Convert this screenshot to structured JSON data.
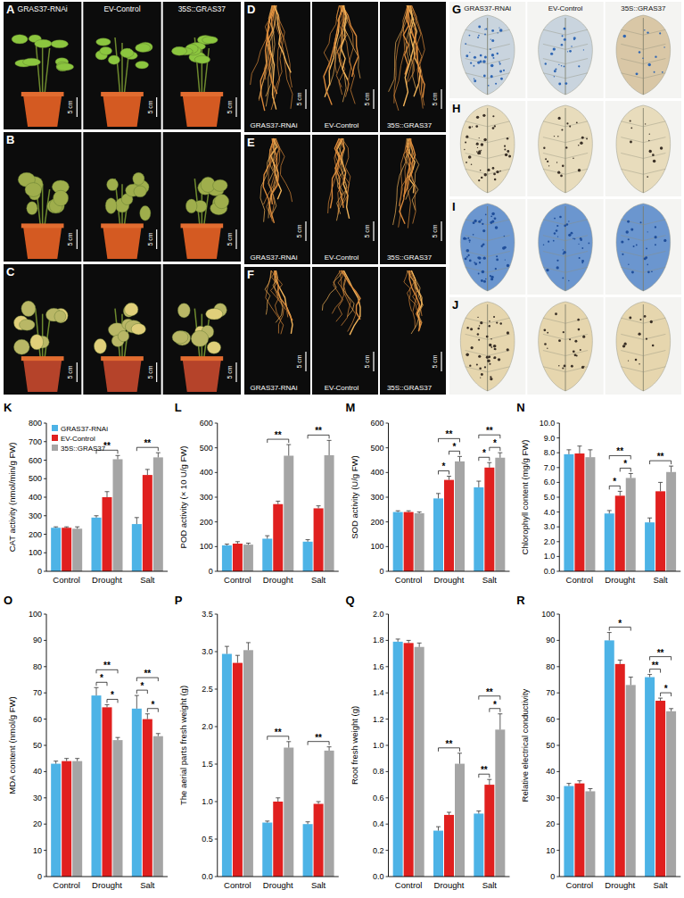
{
  "figure": {
    "panels": [
      {
        "letter": "A",
        "captions": [
          "GRAS37-RNAi",
          "EV-Control",
          "35S::GRAS37"
        ],
        "scale_bar": "5 cm"
      },
      {
        "letter": "B",
        "scale_bar": "5 cm"
      },
      {
        "letter": "C",
        "scale_bar": "5 cm"
      },
      {
        "letter": "D",
        "captions": [
          "GRAS37-RNAi",
          "EV-Control",
          "35S::GRAS37"
        ],
        "scale_bar": "5 cm"
      },
      {
        "letter": "E",
        "captions": [
          "GRAS37-RNAi",
          "EV-Control",
          "35S::GRAS37"
        ],
        "scale_bar": "5 cm"
      },
      {
        "letter": "F",
        "captions": [
          "GRAS37-RNAi",
          "EV-Control",
          "35S::GRAS37"
        ],
        "scale_bar": "5 cm"
      },
      {
        "letter": "G",
        "captions": [
          "GRAS37-RNAi",
          "EV-Control",
          "35S::GRAS37"
        ]
      },
      {
        "letter": "H"
      },
      {
        "letter": "I"
      },
      {
        "letter": "J"
      }
    ]
  },
  "chart_data": [
    {
      "type": "bar",
      "title": "K",
      "y_label": "CAT activity (nmol/min/g FW)",
      "categories": [
        "Control",
        "Drought",
        "Salt"
      ],
      "series": [
        {
          "name": "GRAS37-RNAi",
          "color": "#4db3e6",
          "values": [
            235,
            290,
            255
          ],
          "errors": [
            5,
            10,
            35
          ]
        },
        {
          "name": "EV-Control",
          "color": "#e0201f",
          "values": [
            235,
            400,
            520
          ],
          "errors": [
            5,
            30,
            30
          ]
        },
        {
          "name": "35S::GRAS37",
          "color": "#a5a5a5",
          "values": [
            230,
            605,
            615
          ],
          "errors": [
            10,
            20,
            25
          ]
        }
      ],
      "ylim": [
        0,
        800
      ],
      "yticks": [
        0,
        100,
        200,
        300,
        400,
        500,
        600,
        700,
        800
      ],
      "grid": false,
      "legend": "upper left",
      "annotations": [
        {
          "category": "Drought",
          "pair": [
            0,
            2
          ],
          "text": "**"
        },
        {
          "category": "Salt",
          "pair": [
            0,
            2
          ],
          "text": "**"
        }
      ]
    },
    {
      "type": "bar",
      "title": "L",
      "y_label": "POD activity (× 10 U/g FW)",
      "categories": [
        "Control",
        "Drought",
        "Salt"
      ],
      "series": [
        {
          "color": "#4db3e6",
          "values": [
            105,
            132,
            120
          ],
          "errors": [
            5,
            12,
            8
          ]
        },
        {
          "color": "#e0201f",
          "values": [
            112,
            272,
            255
          ],
          "errors": [
            8,
            12,
            10
          ]
        },
        {
          "color": "#a5a5a5",
          "values": [
            108,
            468,
            470
          ],
          "errors": [
            6,
            45,
            60
          ]
        }
      ],
      "ylim": [
        0,
        600
      ],
      "yticks": [
        0,
        100,
        200,
        300,
        400,
        500,
        600
      ],
      "grid": false,
      "annotations": [
        {
          "category": "Drought",
          "pair": [
            0,
            2
          ],
          "text": "**"
        },
        {
          "category": "Salt",
          "pair": [
            0,
            2
          ],
          "text": "**"
        }
      ]
    },
    {
      "type": "bar",
      "title": "M",
      "y_label": "SOD activity (U/g FW)",
      "categories": [
        "Control",
        "Drought",
        "Salt"
      ],
      "series": [
        {
          "color": "#4db3e6",
          "values": [
            240,
            295,
            340
          ],
          "errors": [
            5,
            20,
            25
          ]
        },
        {
          "color": "#e0201f",
          "values": [
            240,
            370,
            420
          ],
          "errors": [
            5,
            15,
            20
          ]
        },
        {
          "color": "#a5a5a5",
          "values": [
            235,
            445,
            460
          ],
          "errors": [
            5,
            20,
            20
          ]
        }
      ],
      "ylim": [
        0,
        600
      ],
      "yticks": [
        0,
        100,
        200,
        300,
        400,
        500,
        600
      ],
      "grid": false,
      "annotations": [
        {
          "category": "Drought",
          "pair": [
            0,
            1
          ],
          "text": "*"
        },
        {
          "category": "Drought",
          "pair": [
            1,
            2
          ],
          "text": "*"
        },
        {
          "category": "Drought",
          "pair": [
            0,
            2
          ],
          "text": "**"
        },
        {
          "category": "Salt",
          "pair": [
            0,
            1
          ],
          "text": "*"
        },
        {
          "category": "Salt",
          "pair": [
            1,
            2
          ],
          "text": "*"
        },
        {
          "category": "Salt",
          "pair": [
            0,
            2
          ],
          "text": "**"
        }
      ]
    },
    {
      "type": "bar",
      "title": "N",
      "y_label": "Chlorophyll content (mg/g FW)",
      "categories": [
        "Control",
        "Drought",
        "Salt"
      ],
      "series": [
        {
          "color": "#4db3e6",
          "values": [
            7.9,
            3.9,
            3.3
          ],
          "errors": [
            0.3,
            0.2,
            0.3
          ]
        },
        {
          "color": "#e0201f",
          "values": [
            7.95,
            5.1,
            5.4
          ],
          "errors": [
            0.5,
            0.3,
            0.6
          ]
        },
        {
          "color": "#a5a5a5",
          "values": [
            7.7,
            6.3,
            6.7
          ],
          "errors": [
            0.5,
            0.3,
            0.4
          ]
        }
      ],
      "ylim": [
        0,
        10
      ],
      "yticks": [
        {
          "value": 0,
          "label": "0.0"
        },
        {
          "value": 1,
          "label": "1.0"
        },
        {
          "value": 2,
          "label": "2.0"
        },
        {
          "value": 3,
          "label": "3.0"
        },
        {
          "value": 4,
          "label": "4.0"
        },
        {
          "value": 5,
          "label": "5.0"
        },
        {
          "value": 6,
          "label": "6.0"
        },
        {
          "value": 7,
          "label": "7.0"
        },
        {
          "value": 8,
          "label": "8.0"
        },
        {
          "value": 9,
          "label": "9.0"
        },
        {
          "value": 10,
          "label": "10.0"
        }
      ],
      "grid": false,
      "annotations": [
        {
          "category": "Drought",
          "pair": [
            0,
            1
          ],
          "text": "*"
        },
        {
          "category": "Drought",
          "pair": [
            1,
            2
          ],
          "text": "*"
        },
        {
          "category": "Drought",
          "pair": [
            0,
            2
          ],
          "text": "**"
        },
        {
          "category": "Salt",
          "pair": [
            0,
            2
          ],
          "text": "**"
        }
      ]
    },
    {
      "type": "bar",
      "title": "O",
      "y_label": "MDA content (nmol/g FW)",
      "categories": [
        "Control",
        "Drought",
        "Salt"
      ],
      "series": [
        {
          "color": "#4db3e6",
          "values": [
            43,
            69,
            64
          ],
          "errors": [
            1,
            3,
            5
          ]
        },
        {
          "color": "#e0201f",
          "values": [
            44,
            64.5,
            60
          ],
          "errors": [
            1,
            1,
            2
          ]
        },
        {
          "color": "#a5a5a5",
          "values": [
            44,
            52,
            53.5
          ],
          "errors": [
            1,
            1,
            1
          ]
        }
      ],
      "ylim": [
        0,
        100
      ],
      "yticks": [
        0,
        10,
        20,
        30,
        40,
        50,
        60,
        70,
        80,
        90,
        100
      ],
      "grid": false,
      "annotations": [
        {
          "category": "Drought",
          "pair": [
            0,
            1
          ],
          "text": "*"
        },
        {
          "category": "Drought",
          "pair": [
            1,
            2
          ],
          "text": "*"
        },
        {
          "category": "Drought",
          "pair": [
            0,
            2
          ],
          "text": "**"
        },
        {
          "category": "Salt",
          "pair": [
            0,
            1
          ],
          "text": "*"
        },
        {
          "category": "Salt",
          "pair": [
            1,
            2
          ],
          "text": "*"
        },
        {
          "category": "Salt",
          "pair": [
            0,
            2
          ],
          "text": "**"
        }
      ]
    },
    {
      "type": "bar",
      "title": "P",
      "y_label": "The aerial parts fresh weight (g)",
      "categories": [
        "Control",
        "Drought",
        "Salt"
      ],
      "series": [
        {
          "color": "#4db3e6",
          "values": [
            2.97,
            0.72,
            0.7
          ],
          "errors": [
            0.1,
            0.02,
            0.03
          ]
        },
        {
          "color": "#e0201f",
          "values": [
            2.85,
            1.0,
            0.97
          ],
          "errors": [
            0.1,
            0.05,
            0.03
          ]
        },
        {
          "color": "#a5a5a5",
          "values": [
            3.02,
            1.72,
            1.68
          ],
          "errors": [
            0.1,
            0.08,
            0.05
          ]
        }
      ],
      "ylim": [
        0,
        3.5
      ],
      "yticks": [
        {
          "value": 0,
          "label": "0.0"
        },
        0.5,
        {
          "value": 1,
          "label": "1.0"
        },
        1.5,
        {
          "value": 2,
          "label": "2.0"
        },
        2.5,
        {
          "value": 3,
          "label": "3.0"
        },
        3.5
      ],
      "grid": false,
      "annotations": [
        {
          "category": "Drought",
          "pair": [
            0,
            2
          ],
          "text": "**"
        },
        {
          "category": "Salt",
          "pair": [
            0,
            2
          ],
          "text": "**"
        }
      ]
    },
    {
      "type": "bar",
      "title": "Q",
      "y_label": "Root fresh weight (g)",
      "categories": [
        "Control",
        "Drought",
        "Salt"
      ],
      "series": [
        {
          "color": "#4db3e6",
          "values": [
            1.79,
            0.35,
            0.48
          ],
          "errors": [
            0.02,
            0.03,
            0.02
          ]
        },
        {
          "color": "#e0201f",
          "values": [
            1.78,
            0.47,
            0.7
          ],
          "errors": [
            0.02,
            0.02,
            0.04
          ]
        },
        {
          "color": "#a5a5a5",
          "values": [
            1.75,
            0.86,
            1.12
          ],
          "errors": [
            0.03,
            0.08,
            0.12
          ]
        }
      ],
      "ylim": [
        0,
        2
      ],
      "yticks": [
        {
          "value": 0,
          "label": "0.0"
        },
        0.2,
        0.4,
        0.6,
        0.8,
        {
          "value": 1,
          "label": "1.0"
        },
        1.2,
        1.4,
        1.6,
        1.8,
        {
          "value": 2,
          "label": "2.0"
        }
      ],
      "grid": false,
      "annotations": [
        {
          "category": "Drought",
          "pair": [
            0,
            2
          ],
          "text": "**"
        },
        {
          "category": "Salt",
          "pair": [
            0,
            1
          ],
          "text": "**"
        },
        {
          "category": "Salt",
          "pair": [
            1,
            2
          ],
          "text": "*"
        },
        {
          "category": "Salt",
          "pair": [
            0,
            2
          ],
          "text": "**"
        }
      ]
    },
    {
      "type": "bar",
      "title": "R",
      "y_label": "Relative electrical conductivity",
      "categories": [
        "Control",
        "Drought",
        "Salt"
      ],
      "series": [
        {
          "color": "#4db3e6",
          "values": [
            34.5,
            90,
            76
          ],
          "errors": [
            1,
            3,
            1
          ]
        },
        {
          "color": "#e0201f",
          "values": [
            35.5,
            81,
            67
          ],
          "errors": [
            1,
            1.5,
            1
          ]
        },
        {
          "color": "#a5a5a5",
          "values": [
            32.5,
            73,
            63
          ],
          "errors": [
            1,
            3,
            1
          ]
        }
      ],
      "ylim": [
        0,
        100
      ],
      "yticks": [
        0,
        10,
        20,
        30,
        40,
        50,
        60,
        70,
        80,
        90,
        100
      ],
      "grid": false,
      "annotations": [
        {
          "category": "Drought",
          "pair": [
            0,
            2
          ],
          "text": "*"
        },
        {
          "category": "Salt",
          "pair": [
            0,
            1
          ],
          "text": "**"
        },
        {
          "category": "Salt",
          "pair": [
            1,
            2
          ],
          "text": "*"
        },
        {
          "category": "Salt",
          "pair": [
            0,
            2
          ],
          "text": "**"
        }
      ]
    }
  ]
}
